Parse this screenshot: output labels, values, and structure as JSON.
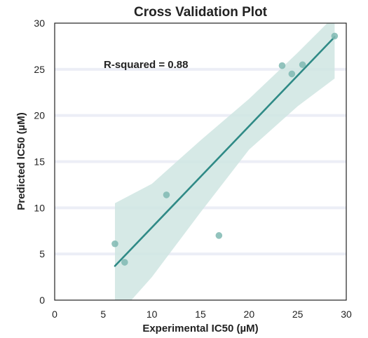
{
  "chart_data": {
    "type": "scatter",
    "title": "Cross Validation Plot",
    "xlabel": "Experimental IC50 (µM)",
    "ylabel": "Predicted IC50 (µM)",
    "xlim": [
      0,
      30
    ],
    "ylim": [
      0,
      30
    ],
    "xticks": [
      0,
      5,
      10,
      15,
      20,
      25,
      30
    ],
    "yticks": [
      0,
      5,
      10,
      15,
      20,
      25,
      30
    ],
    "grid": "horizontal",
    "annotation": "R-squared = 0.88",
    "points": [
      {
        "x": 6.2,
        "y": 6.1
      },
      {
        "x": 7.2,
        "y": 4.1
      },
      {
        "x": 11.5,
        "y": 11.4
      },
      {
        "x": 16.9,
        "y": 7.0
      },
      {
        "x": 23.4,
        "y": 25.4
      },
      {
        "x": 24.4,
        "y": 24.5
      },
      {
        "x": 25.5,
        "y": 25.5
      },
      {
        "x": 28.8,
        "y": 28.6
      }
    ],
    "regression": {
      "x": [
        6.2,
        28.8
      ],
      "y": [
        3.7,
        28.5
      ]
    },
    "confidence_band": {
      "x": [
        6.2,
        10,
        15,
        20,
        25,
        28.8
      ],
      "lower": [
        -2.0,
        2.5,
        9.5,
        16.3,
        21.0,
        24.0
      ],
      "upper": [
        10.5,
        12.6,
        17.3,
        21.8,
        26.8,
        30.8
      ]
    },
    "colors": {
      "points": "#7fb8b2",
      "line": "#2f8a86",
      "band": "#cfe5e2",
      "grid": "#eceef6",
      "frame": "#222222"
    }
  }
}
